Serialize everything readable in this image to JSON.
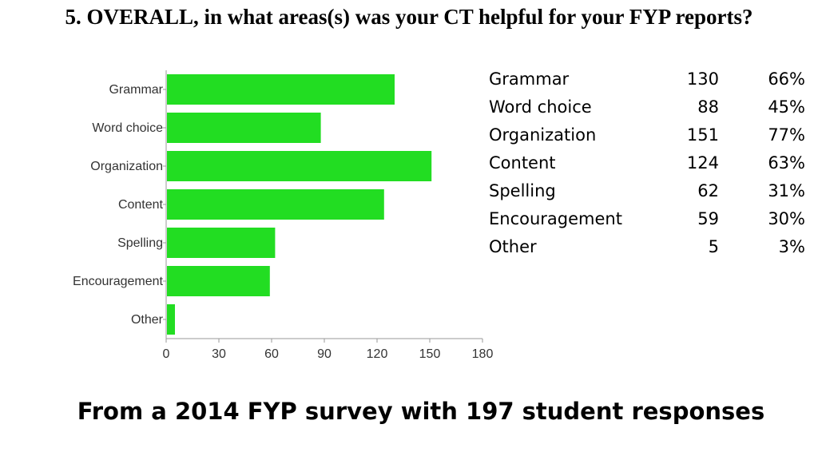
{
  "title": "5. OVERALL, in what areas(s) was your CT helpful for your FYP reports?",
  "footer": "From a 2014 FYP survey with 197 student responses",
  "chart_data": {
    "type": "bar",
    "orientation": "horizontal",
    "categories": [
      "Grammar",
      "Word choice",
      "Organization",
      "Content",
      "Spelling",
      "Encouragement",
      "Other"
    ],
    "values": [
      130,
      88,
      151,
      124,
      62,
      59,
      5
    ],
    "xlim": [
      0,
      180
    ],
    "xticks": [
      "0",
      "30",
      "60",
      "90",
      "120",
      "150",
      "180"
    ],
    "bar_color": "#22dd22",
    "grid": false
  },
  "table": {
    "rows": [
      {
        "name": "Grammar",
        "count": "130",
        "pct": "66%"
      },
      {
        "name": "Word choice",
        "count": "88",
        "pct": "45%"
      },
      {
        "name": "Organization",
        "count": "151",
        "pct": "77%"
      },
      {
        "name": "Content",
        "count": "124",
        "pct": "63%"
      },
      {
        "name": "Spelling",
        "count": "62",
        "pct": "31%"
      },
      {
        "name": "Encouragement",
        "count": "59",
        "pct": "30%"
      },
      {
        "name": "Other",
        "count": "5",
        "pct": "3%"
      }
    ]
  }
}
